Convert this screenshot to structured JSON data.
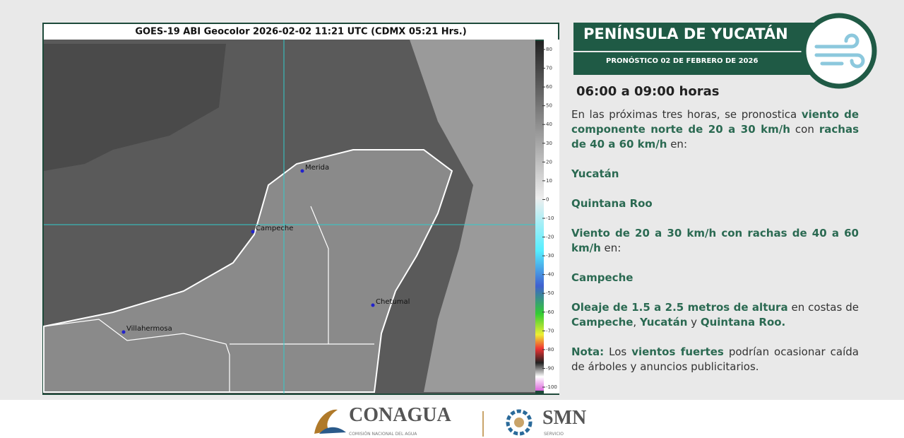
{
  "image": {
    "title": "GOES-19 ABI Geocolor 2026-02-02 11:21 UTC (CDMX  05:21 Hrs.)",
    "cities": [
      "Merida",
      "Campeche",
      "Chetumal",
      "Villahermosa"
    ],
    "colorbar": {
      "ticks": [
        80,
        70,
        60,
        50,
        40,
        30,
        20,
        10,
        0,
        -10,
        -20,
        -30,
        -40,
        -50,
        -60,
        -70,
        -80,
        -90,
        -100
      ]
    }
  },
  "banner": {
    "title": "PENÍNSULA DE YUCATÁN",
    "subtitle": "PRONÓSTICO 02 DE FEBRERO DE 2026"
  },
  "forecast": {
    "heading": "06:00 a 09:00 horas",
    "paragraphs": [
      [
        {
          "text": "En las próximas tres  horas, se pronostica "
        },
        {
          "text": "viento de componente norte de 20 a 30 km/h",
          "bold": true
        },
        {
          "text": " con "
        },
        {
          "text": "rachas de 40 a 60 km/h",
          "bold": true
        },
        {
          "text": " en:"
        }
      ],
      [
        {
          "text": "Yucatán",
          "bold": true
        }
      ],
      [
        {
          "text": "Quintana Roo",
          "bold": true
        }
      ],
      [
        {
          "text": "Viento de 20 a 30 km/h con rachas de 40 a 60 km/h",
          "bold": true
        },
        {
          "text": " en:"
        }
      ],
      [
        {
          "text": "Campeche",
          "bold": true
        }
      ],
      [
        {
          "text": "Oleaje de 1.5 a 2.5 metros de altura",
          "bold": true
        },
        {
          "text": " en costas de "
        },
        {
          "text": "Campeche",
          "bold": true
        },
        {
          "text": ", "
        },
        {
          "text": "Yucatán",
          "bold": true
        },
        {
          "text": " y "
        },
        {
          "text": "Quintana Roo.",
          "bold": true
        }
      ],
      [
        {
          "text": "Nota:",
          "bold": true
        },
        {
          "text": " Los "
        },
        {
          "text": "vientos fuertes",
          "bold": true
        },
        {
          "text": " podrían ocasionar caída de árboles y anuncios publicitarios."
        }
      ]
    ]
  },
  "footer": {
    "conagua": "CONAGUA",
    "conagua_sub": "COMISIÓN NACIONAL DEL AGUA",
    "smn": "SMN",
    "smn_sub": "SERVICIO"
  }
}
